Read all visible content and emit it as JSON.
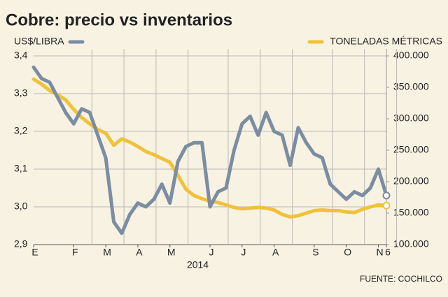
{
  "chart_data": {
    "type": "line",
    "title": "Cobre: precio vs inventarios",
    "categories": [
      "E",
      null,
      null,
      null,
      null,
      "F",
      null,
      null,
      null,
      "M",
      null,
      null,
      null,
      "A",
      null,
      null,
      null,
      "M",
      null,
      null,
      null,
      null,
      "J",
      null,
      null,
      null,
      "J",
      null,
      null,
      null,
      "A",
      null,
      null,
      null,
      null,
      "S",
      null,
      null,
      null,
      "O",
      null,
      null,
      null,
      "N",
      "6"
    ],
    "x_annotation": "2014",
    "source": "FUENTE: COCHILCO",
    "series": [
      {
        "name": "US$/LIBRA",
        "color": "#7b8da2",
        "axis": "y",
        "values": [
          3.37,
          3.34,
          3.33,
          3.29,
          3.25,
          3.22,
          3.26,
          3.25,
          3.19,
          3.13,
          2.96,
          2.93,
          2.98,
          3.01,
          3.0,
          3.02,
          3.06,
          3.01,
          3.12,
          3.16,
          3.17,
          3.17,
          3.0,
          3.04,
          3.05,
          3.15,
          3.22,
          3.24,
          3.19,
          3.25,
          3.2,
          3.19,
          3.11,
          3.21,
          3.17,
          3.14,
          3.13,
          3.06,
          3.04,
          3.02,
          3.04,
          3.03,
          3.05,
          3.1,
          3.03
        ]
      },
      {
        "name": "TONELADAS MÉTRICAS",
        "color": "#f0c23a",
        "axis": "y2",
        "values": [
          363000,
          355000,
          345000,
          338000,
          330000,
          315000,
          302000,
          292000,
          283000,
          277000,
          258000,
          268000,
          263000,
          256000,
          248000,
          243000,
          237000,
          231000,
          210000,
          188000,
          178000,
          173000,
          169000,
          167000,
          163000,
          159000,
          157000,
          158000,
          159000,
          158000,
          155000,
          148000,
          144000,
          146000,
          150000,
          154000,
          155000,
          154000,
          154000,
          152000,
          151000,
          156000,
          160000,
          163000,
          162000
        ]
      }
    ],
    "ylim": [
      2.9,
      3.4
    ],
    "yticks": [
      {
        "value": 2.9,
        "label": "2,9"
      },
      {
        "value": 3.0,
        "label": "3,0"
      },
      {
        "value": 3.1,
        "label": "3,1"
      },
      {
        "value": 3.2,
        "label": "3,2"
      },
      {
        "value": 3.3,
        "label": "3,3"
      },
      {
        "value": 3.4,
        "label": "3,4"
      }
    ],
    "y2lim": [
      100000,
      400000
    ],
    "y2ticks": [
      {
        "value": 100000,
        "label": "100.000"
      },
      {
        "value": 150000,
        "label": "150.000"
      },
      {
        "value": 200000,
        "label": "200.000"
      },
      {
        "value": 250000,
        "label": "250.000"
      },
      {
        "value": 300000,
        "label": "300.000"
      },
      {
        "value": 350000,
        "label": "350.000"
      },
      {
        "value": 400000,
        "label": "400.000"
      }
    ],
    "grid": true
  }
}
